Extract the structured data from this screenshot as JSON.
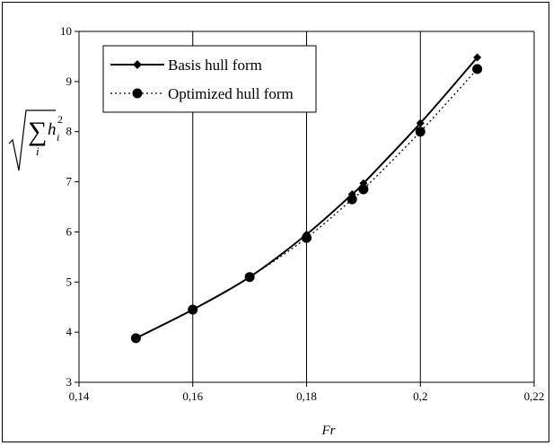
{
  "chart_data": {
    "type": "line",
    "xlabel": "Fr",
    "ylabel": {
      "root": "√",
      "sum": "∑",
      "sub": "i",
      "var": "h",
      "var_sub": "i",
      "power": "2"
    },
    "xlim": [
      0.14,
      0.22
    ],
    "ylim": [
      3,
      10
    ],
    "x_ticks": [
      "0,14",
      "0,16",
      "0,18",
      "0,2",
      "0,22"
    ],
    "x_tick_values": [
      0.14,
      0.16,
      0.18,
      0.2,
      0.22
    ],
    "y_ticks": [
      "3",
      "4",
      "5",
      "6",
      "7",
      "8",
      "9",
      "10"
    ],
    "y_tick_values": [
      3,
      4,
      5,
      6,
      7,
      8,
      9,
      10
    ],
    "grid": "vertical",
    "legend_position": "top-left",
    "series": [
      {
        "name": "Basis hull form",
        "marker": "diamond",
        "line_style": "solid",
        "color": "#000000",
        "x": [
          0.15,
          0.16,
          0.17,
          0.18,
          0.188,
          0.19,
          0.2,
          0.21
        ],
        "y": [
          3.88,
          4.45,
          5.1,
          5.95,
          6.75,
          6.97,
          8.17,
          9.48
        ]
      },
      {
        "name": "Optimized hull form",
        "marker": "circle",
        "line_style": "dotted",
        "color": "#000000",
        "x": [
          0.15,
          0.16,
          0.17,
          0.18,
          0.188,
          0.19,
          0.2,
          0.21
        ],
        "y": [
          3.88,
          4.45,
          5.1,
          5.88,
          6.65,
          6.85,
          8.0,
          9.25
        ]
      }
    ]
  }
}
